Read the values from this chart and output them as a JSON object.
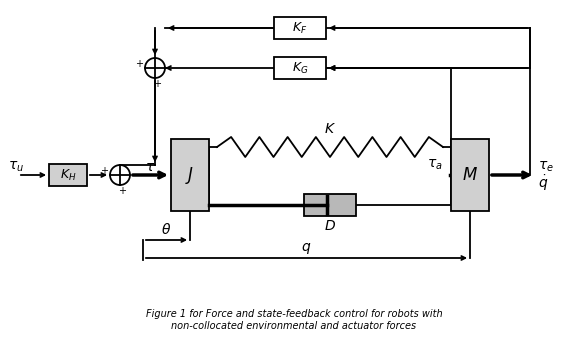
{
  "figsize": [
    5.88,
    3.42
  ],
  "dpi": 100,
  "bg_color": "#ffffff",
  "gray": "#d0d0d0",
  "black": "#000000",
  "lw": 1.3,
  "lw_thick": 2.5,
  "caption": "Figure 1 for Force and state-feedback control for robots with\nnon-collocated environmental and actuator forces"
}
